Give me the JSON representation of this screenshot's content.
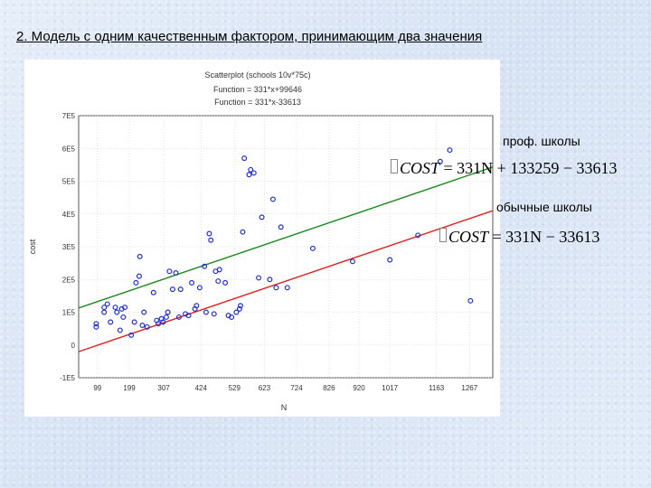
{
  "slide": {
    "title": "2. Модель с одним качественным фактором, принимающим два значения"
  },
  "annotations": {
    "label_prof": "проф. школы",
    "label_regular": "обычные школы",
    "formula_prof_lhs": "COST",
    "formula_prof_rhs": "= 331N + 133259 − 33613",
    "formula_reg_lhs": "COST",
    "formula_reg_rhs": "= 331N − 33613"
  },
  "chart_data": {
    "type": "scatter",
    "title": "Scatterplot (schools 10v*75c)",
    "function_lines": [
      "Function = 331*x+99646",
      "Function = 331*x-33613"
    ],
    "xlabel": "N",
    "ylabel": "cost",
    "xlim": [
      40,
      1340
    ],
    "ylim": [
      -100000,
      700000
    ],
    "xticks": [
      "99",
      "199",
      "307",
      "424",
      "529",
      "623",
      "724",
      "826",
      "920",
      "1017",
      "1163",
      "1267"
    ],
    "xtick_values": [
      99,
      199,
      307,
      424,
      529,
      623,
      724,
      826,
      920,
      1017,
      1163,
      1267
    ],
    "yticks": [
      "-1E5",
      "0",
      "1E5",
      "2E5",
      "3E5",
      "4E5",
      "5E5",
      "6E5",
      "7E5"
    ],
    "ytick_values": [
      -100000,
      0,
      100000,
      200000,
      300000,
      400000,
      500000,
      600000,
      700000
    ],
    "lines": [
      {
        "slope": 331,
        "intercept": 99646,
        "color": "#1a8a1a"
      },
      {
        "slope": 331,
        "intercept": -33613,
        "color": "#e02020"
      }
    ],
    "point_color": "#1f2fd0",
    "points": [
      [
        95,
        55000
      ],
      [
        95,
        65000
      ],
      [
        120,
        115000
      ],
      [
        120,
        100000
      ],
      [
        130,
        125000
      ],
      [
        140,
        70000
      ],
      [
        155,
        115000
      ],
      [
        160,
        100000
      ],
      [
        170,
        45000
      ],
      [
        175,
        110000
      ],
      [
        180,
        85000
      ],
      [
        185,
        115000
      ],
      [
        205,
        30000
      ],
      [
        215,
        70000
      ],
      [
        220,
        190000
      ],
      [
        230,
        210000
      ],
      [
        232,
        270000
      ],
      [
        240,
        60000
      ],
      [
        245,
        100000
      ],
      [
        255,
        55000
      ],
      [
        275,
        160000
      ],
      [
        285,
        75000
      ],
      [
        290,
        65000
      ],
      [
        300,
        80000
      ],
      [
        305,
        70000
      ],
      [
        315,
        85000
      ],
      [
        320,
        100000
      ],
      [
        325,
        225000
      ],
      [
        335,
        170000
      ],
      [
        345,
        220000
      ],
      [
        355,
        85000
      ],
      [
        360,
        170000
      ],
      [
        375,
        95000
      ],
      [
        385,
        90000
      ],
      [
        395,
        190000
      ],
      [
        405,
        110000
      ],
      [
        410,
        120000
      ],
      [
        420,
        175000
      ],
      [
        435,
        240000
      ],
      [
        440,
        100000
      ],
      [
        450,
        340000
      ],
      [
        455,
        320000
      ],
      [
        465,
        95000
      ],
      [
        470,
        225000
      ],
      [
        478,
        195000
      ],
      [
        482,
        230000
      ],
      [
        500,
        190000
      ],
      [
        510,
        90000
      ],
      [
        520,
        85000
      ],
      [
        535,
        100000
      ],
      [
        545,
        110000
      ],
      [
        548,
        120000
      ],
      [
        555,
        345000
      ],
      [
        560,
        570000
      ],
      [
        575,
        520000
      ],
      [
        580,
        535000
      ],
      [
        590,
        525000
      ],
      [
        605,
        205000
      ],
      [
        615,
        390000
      ],
      [
        640,
        200000
      ],
      [
        650,
        445000
      ],
      [
        660,
        175000
      ],
      [
        675,
        360000
      ],
      [
        695,
        175000
      ],
      [
        775,
        295000
      ],
      [
        900,
        255000
      ],
      [
        1017,
        260000
      ],
      [
        1105,
        335000
      ],
      [
        1175,
        560000
      ],
      [
        1205,
        595000
      ],
      [
        1270,
        135000
      ]
    ]
  }
}
